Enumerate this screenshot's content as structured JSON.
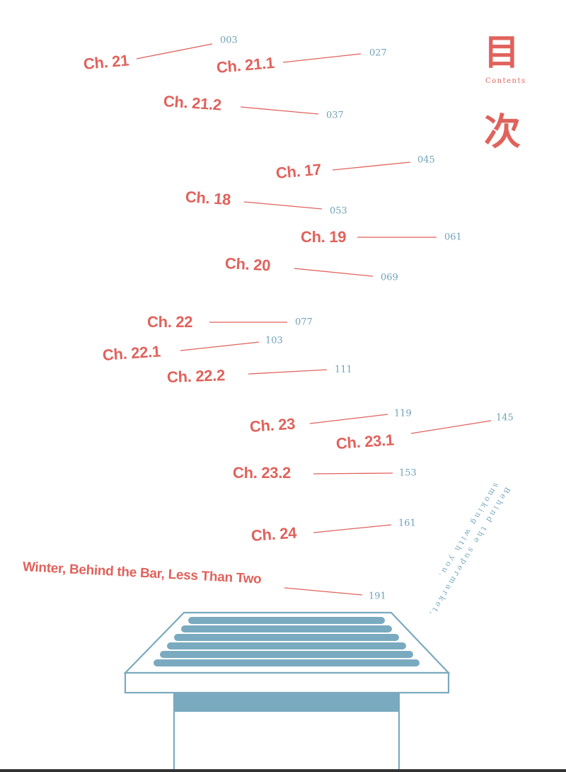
{
  "title": {
    "char_top": "目",
    "label": "Contents",
    "char_bottom": "次"
  },
  "entries": [
    {
      "chapter": "Ch. 21",
      "page": "003"
    },
    {
      "chapter": "Ch. 21.1",
      "page": "027"
    },
    {
      "chapter": "Ch. 21.2",
      "page": "037"
    },
    {
      "chapter": "Ch. 17",
      "page": "045"
    },
    {
      "chapter": "Ch. 18",
      "page": "053"
    },
    {
      "chapter": "Ch. 19",
      "page": "061"
    },
    {
      "chapter": "Ch. 20",
      "page": "069"
    },
    {
      "chapter": "Ch. 22",
      "page": "077"
    },
    {
      "chapter": "Ch. 22.1",
      "page": "103"
    },
    {
      "chapter": "Ch. 22.2",
      "page": "111"
    },
    {
      "chapter": "Ch. 23",
      "page": "119"
    },
    {
      "chapter": "Ch. 23.1",
      "page": "145"
    },
    {
      "chapter": "Ch. 23.2",
      "page": "153"
    },
    {
      "chapter": "Ch. 24",
      "page": "161"
    },
    {
      "chapter": "Winter, Behind the Bar, Less Than Two",
      "page": "191"
    }
  ],
  "side_text": [
    "Behind the supermarket,",
    "smoking with you."
  ],
  "colors": {
    "accent_red": "#e0625c",
    "accent_blue": "#7aaabf"
  },
  "illustration": "rooftop-vent"
}
